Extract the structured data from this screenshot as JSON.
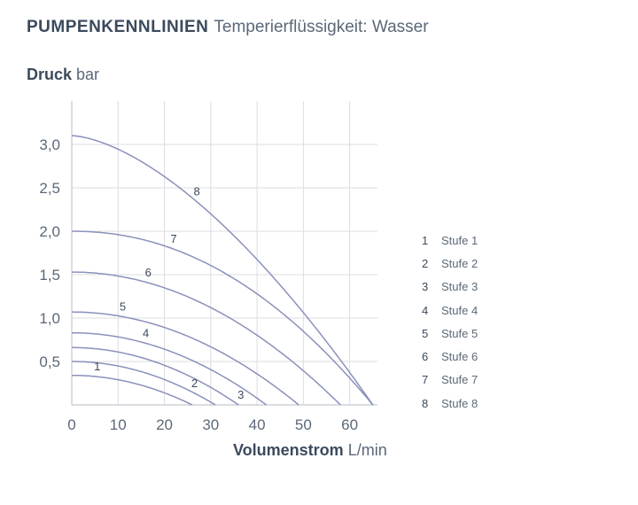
{
  "title": {
    "main": "PUMPENKENNLINIEN",
    "sub": "Temperierflüssigkeit: Wasser"
  },
  "y_axis": {
    "label": "Druck",
    "unit": "bar"
  },
  "x_axis": {
    "label": "Volumenstrom",
    "unit": "L/min"
  },
  "colors": {
    "line": "#8a91bb",
    "grid": "#dcdde2",
    "axis": "#b8bbc4",
    "text": "#3b4a5c"
  },
  "chart_data": {
    "type": "line",
    "title": "PUMPENKENNLINIEN Temperierflüssigkeit: Wasser",
    "xlabel": "Volumenstrom L/min",
    "ylabel": "Druck bar",
    "xlim": [
      0,
      66
    ],
    "ylim": [
      0,
      3.5
    ],
    "xticks": [
      0,
      10,
      20,
      30,
      40,
      50,
      60
    ],
    "xtick_labels": [
      "0",
      "10",
      "20",
      "30",
      "40",
      "50",
      "60"
    ],
    "yticks": [
      0.5,
      1.0,
      1.5,
      2.0,
      2.5,
      3.0
    ],
    "ytick_labels": [
      "0,5",
      "1,0",
      "1,5",
      "2,0",
      "2,5",
      "3,0"
    ],
    "grid": true,
    "legend_position": "right",
    "series": [
      {
        "name": "Stufe 1",
        "label": "1",
        "y0": 0.34,
        "xmax": 26,
        "exp": 2.0,
        "label_x": 5.5
      },
      {
        "name": "Stufe 2",
        "label": "2",
        "y0": 0.5,
        "xmax": 31,
        "exp": 2.0,
        "label_x": 26.5
      },
      {
        "name": "Stufe 3",
        "label": "3",
        "y0": 0.66,
        "xmax": 36,
        "exp": 2.0,
        "label_x": 36.5
      },
      {
        "name": "Stufe 4",
        "label": "4",
        "y0": 0.83,
        "xmax": 42,
        "exp": 2.0,
        "label_x": 16
      },
      {
        "name": "Stufe 5",
        "label": "5",
        "y0": 1.07,
        "xmax": 49,
        "exp": 2.0,
        "label_x": 11
      },
      {
        "name": "Stufe 6",
        "label": "6",
        "y0": 1.53,
        "xmax": 58,
        "exp": 2.0,
        "label_x": 16.5
      },
      {
        "name": "Stufe 7",
        "label": "7",
        "y0": 2.0,
        "xmax": 65,
        "exp": 2.1,
        "label_x": 22
      },
      {
        "name": "Stufe 8",
        "label": "8",
        "y0": 3.1,
        "xmax": 65,
        "exp": 1.6,
        "label_x": 27
      }
    ]
  }
}
